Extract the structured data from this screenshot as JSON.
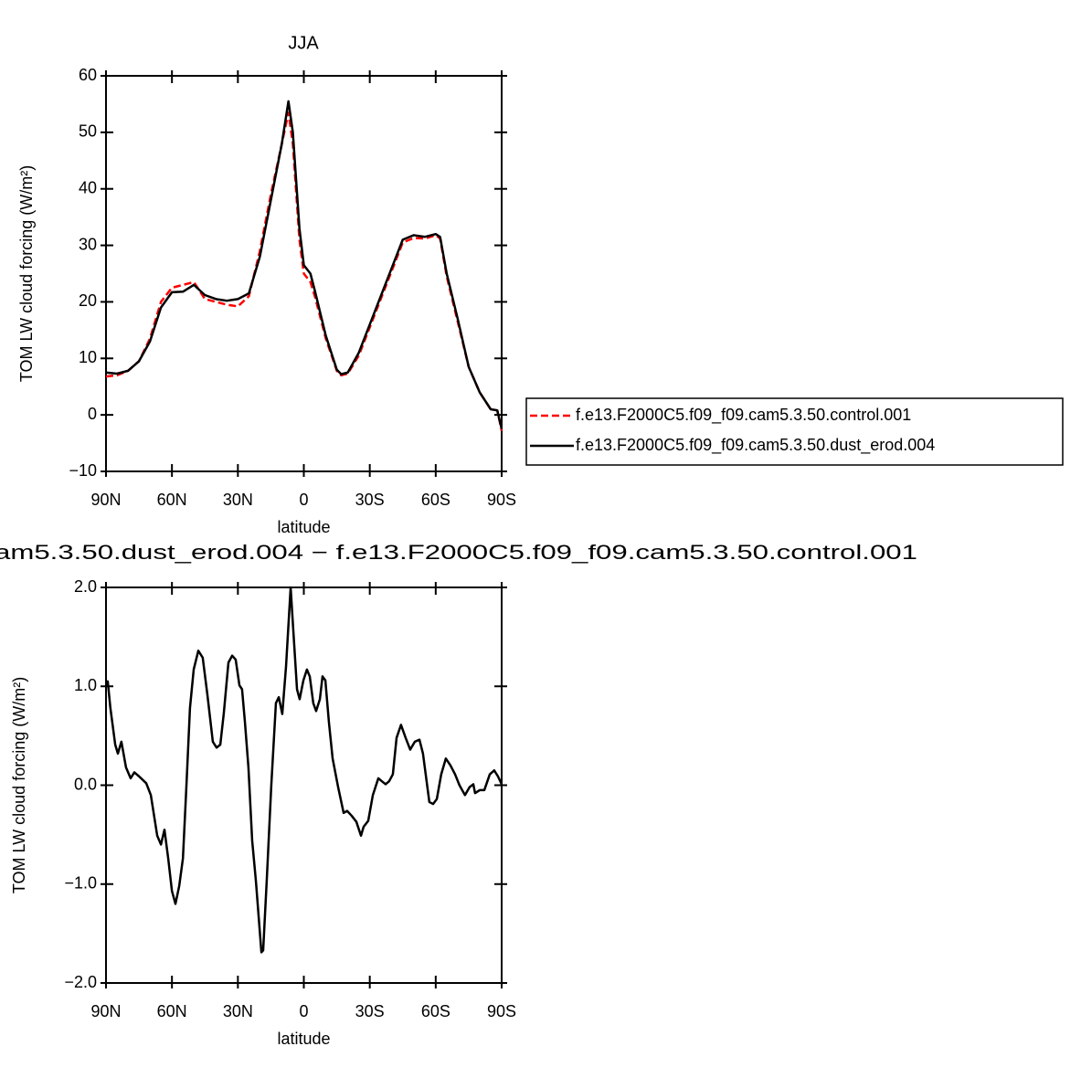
{
  "chart_data": [
    {
      "type": "line",
      "title": "JJA",
      "xlabel": "latitude",
      "ylabel": "TOM LW cloud forcing (W/m²)",
      "x": [
        90,
        85,
        80,
        75,
        70,
        65,
        60,
        55,
        50,
        45,
        40,
        35,
        30,
        25,
        20,
        15,
        10,
        7,
        5,
        2,
        0,
        -3,
        -5,
        -10,
        -15,
        -17,
        -20,
        -25,
        -30,
        -35,
        -40,
        -45,
        -50,
        -55,
        -60,
        -62,
        -65,
        -70,
        -75,
        -80,
        -85,
        -88,
        -90
      ],
      "xlim": [
        90,
        -90
      ],
      "xticks": [
        {
          "value": 90,
          "label": "90N"
        },
        {
          "value": 60,
          "label": "60N"
        },
        {
          "value": 30,
          "label": "30N"
        },
        0,
        {
          "value": -30,
          "label": "30S"
        },
        {
          "value": -60,
          "label": "60S"
        },
        {
          "value": -90,
          "label": "90S"
        }
      ],
      "ylim": [
        -10,
        60
      ],
      "yticks": [
        {
          "value": -10,
          "label": "−10"
        },
        0,
        10,
        20,
        30,
        40,
        50,
        60
      ],
      "legend": "outside right",
      "series": [
        {
          "name": "f.e13.F2000C5.f09_f09.cam5.3.50.control.001",
          "color": "#ff0000",
          "linestyle": "dashed",
          "values": [
            6.8,
            7,
            7.8,
            9.5,
            13.5,
            20,
            22.5,
            23,
            23.5,
            20.5,
            20,
            19.5,
            19.2,
            21,
            29,
            39,
            48,
            53.5,
            48,
            31,
            25,
            23.5,
            21,
            13.5,
            7.8,
            7,
            7.3,
            10.5,
            15.5,
            20.5,
            25.5,
            30.5,
            31.3,
            31.2,
            31.8,
            31.2,
            24.5,
            16.5,
            8.5,
            4,
            1,
            0.8,
            -2.8
          ]
        },
        {
          "name": "f.e13.F2000C5.f09_f09.cam5.3.50.dust_erod.004",
          "color": "#000000",
          "linestyle": "solid",
          "values": [
            7.5,
            7.3,
            7.8,
            9.5,
            13,
            19,
            21.7,
            21.8,
            23,
            21.2,
            20.5,
            20.2,
            20.5,
            21.5,
            28,
            38,
            48,
            55.5,
            50,
            33,
            26.5,
            25,
            22,
            14,
            8,
            7.2,
            7.5,
            11,
            16,
            21,
            26,
            31,
            31.8,
            31.5,
            32,
            31.5,
            25,
            17,
            8.5,
            4,
            1,
            0.8,
            -2.5
          ]
        }
      ]
    },
    {
      "type": "line",
      "title": "am5.3.50.dust_erod.004 − f.e13.F2000C5.f09_f09.cam5.3.50.control.001",
      "xlabel": "latitude",
      "ylabel": "TOM LW cloud forcing (W/m²)",
      "x": [
        90,
        89.2,
        88,
        85.8,
        84.6,
        83,
        80.9,
        78.8,
        77.1,
        75,
        71.7,
        69.6,
        66.7,
        65,
        63.4,
        61.7,
        60,
        58.4,
        56.7,
        55,
        53.4,
        51.8,
        50.1,
        48,
        46,
        43.9,
        41.4,
        39.7,
        38,
        36.4,
        34.3,
        32.6,
        31,
        29.3,
        28.1,
        26.8,
        25.2,
        23.5,
        21.8,
        19.3,
        18.5,
        16.8,
        14.8,
        12.7,
        11.4,
        9.8,
        8.1,
        6,
        4.8,
        3.1,
        1.9,
        0.2,
        -1.4,
        -2.7,
        -4.3,
        -5.6,
        -7.3,
        -8.5,
        -9.8,
        -11.4,
        -13.1,
        -15.6,
        -18.1,
        -19.7,
        -21.8,
        -23.9,
        -26,
        -27.2,
        -29.3,
        -31.4,
        -33.9,
        -35.5,
        -37.2,
        -38.8,
        -40.5,
        -42.2,
        -44.2,
        -46.3,
        -48.4,
        -50.5,
        -52.6,
        -54.2,
        -57.1,
        -58.8,
        -60.5,
        -62.5,
        -64.6,
        -66.7,
        -68.8,
        -70.8,
        -73.3,
        -75.4,
        -77.1,
        -77.9,
        -80,
        -82.1,
        -84.6,
        -86.6,
        -88.3,
        -90
      ],
      "xlim": [
        90,
        -90
      ],
      "xticks": [
        {
          "value": 90,
          "label": "90N"
        },
        {
          "value": 60,
          "label": "60N"
        },
        {
          "value": 30,
          "label": "30N"
        },
        0,
        {
          "value": -30,
          "label": "30S"
        },
        {
          "value": -60,
          "label": "60S"
        },
        {
          "value": -90,
          "label": "90S"
        }
      ],
      "ylim": [
        -2,
        2
      ],
      "yticks": [
        {
          "value": -2,
          "label": "−2.0"
        },
        {
          "value": -1,
          "label": "−1.0"
        },
        {
          "value": 0,
          "label": "0.0"
        },
        {
          "value": 1,
          "label": "1.0"
        },
        {
          "value": 2,
          "label": "2.0"
        }
      ],
      "series": [
        {
          "color": "#000000",
          "linestyle": "solid",
          "values": [
            1.01,
            1.05,
            0.78,
            0.41,
            0.32,
            0.44,
            0.18,
            0.07,
            0.13,
            0.09,
            0.02,
            -0.1,
            -0.51,
            -0.6,
            -0.45,
            -0.74,
            -1.07,
            -1.2,
            -1.02,
            -0.74,
            0,
            0.78,
            1.17,
            1.36,
            1.29,
            0.92,
            0.44,
            0.38,
            0.41,
            0.73,
            1.24,
            1.31,
            1.27,
            1.01,
            0.97,
            0.64,
            0.18,
            -0.56,
            -0.97,
            -1.69,
            -1.67,
            -0.93,
            0,
            0.83,
            0.89,
            0.72,
            1.2,
            2,
            1.57,
            0.97,
            0.87,
            1.06,
            1.17,
            1.1,
            0.83,
            0.75,
            0.87,
            1.1,
            1.06,
            0.64,
            0.27,
            -0.02,
            -0.28,
            -0.26,
            -0.31,
            -0.37,
            -0.51,
            -0.42,
            -0.36,
            -0.1,
            0.07,
            0.04,
            0.01,
            0.04,
            0.11,
            0.48,
            0.61,
            0.48,
            0.36,
            0.44,
            0.46,
            0.32,
            -0.17,
            -0.19,
            -0.14,
            0.11,
            0.27,
            0.2,
            0.11,
            0,
            -0.1,
            -0.02,
            0.01,
            -0.08,
            -0.05,
            -0.05,
            0.11,
            0.15,
            0.09,
            0.01
          ]
        }
      ]
    }
  ]
}
